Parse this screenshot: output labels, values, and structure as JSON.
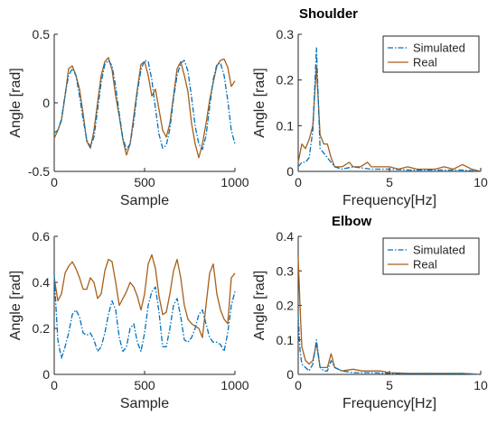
{
  "figure": {
    "titles": {
      "shoulder": "Shoulder",
      "elbow": "Elbow"
    },
    "colors": {
      "simulated": "#0072BD",
      "real": "#A65F1A"
    }
  },
  "chart_data": [
    {
      "type": "line",
      "panel": "shoulder-time",
      "title": "",
      "xlabel": "Sample",
      "ylabel": "Angle [rad]",
      "xlim": [
        0,
        1000
      ],
      "ylim": [
        -0.5,
        0.5
      ],
      "xticks": [
        0,
        500,
        1000
      ],
      "yticks": [
        -0.5,
        0,
        0.5
      ],
      "grid": false,
      "series": [
        {
          "name": "Simulated",
          "style": "dash-dot",
          "x": [
            0,
            20,
            40,
            60,
            80,
            100,
            120,
            140,
            160,
            180,
            200,
            220,
            240,
            260,
            280,
            300,
            320,
            340,
            360,
            380,
            400,
            420,
            440,
            460,
            480,
            500,
            520,
            540,
            560,
            580,
            600,
            620,
            640,
            660,
            680,
            700,
            720,
            740,
            760,
            780,
            800,
            820,
            840,
            860,
            880,
            900,
            920,
            940,
            960,
            980,
            1000
          ],
          "values": [
            -0.22,
            -0.2,
            -0.12,
            0.06,
            0.2,
            0.25,
            0.2,
            0.05,
            -0.12,
            -0.27,
            -0.32,
            -0.25,
            -0.05,
            0.15,
            0.28,
            0.31,
            0.27,
            0.12,
            -0.08,
            -0.26,
            -0.34,
            -0.3,
            -0.14,
            0.08,
            0.24,
            0.31,
            0.3,
            0.17,
            -0.04,
            -0.23,
            -0.33,
            -0.31,
            -0.19,
            0.03,
            0.2,
            0.29,
            0.31,
            0.23,
            0.04,
            -0.17,
            -0.3,
            -0.34,
            -0.24,
            -0.03,
            0.17,
            0.28,
            0.29,
            0.2,
            0.02,
            -0.2,
            -0.3
          ]
        },
        {
          "name": "Real",
          "style": "solid",
          "x": [
            0,
            20,
            40,
            60,
            80,
            100,
            120,
            140,
            160,
            180,
            200,
            220,
            240,
            260,
            280,
            300,
            320,
            340,
            360,
            380,
            400,
            420,
            440,
            460,
            480,
            500,
            520,
            540,
            560,
            580,
            600,
            620,
            640,
            660,
            680,
            700,
            720,
            740,
            760,
            780,
            800,
            820,
            840,
            860,
            880,
            900,
            920,
            940,
            960,
            980,
            1000
          ],
          "values": [
            -0.26,
            -0.2,
            -0.13,
            0.05,
            0.25,
            0.27,
            0.2,
            0.1,
            -0.08,
            -0.28,
            -0.33,
            -0.2,
            0.0,
            0.2,
            0.3,
            0.33,
            0.24,
            0.05,
            -0.1,
            -0.27,
            -0.38,
            -0.3,
            -0.1,
            0.1,
            0.28,
            0.3,
            0.2,
            0.05,
            0.1,
            -0.05,
            -0.2,
            -0.25,
            -0.15,
            0.05,
            0.25,
            0.3,
            0.2,
            0.08,
            -0.15,
            -0.3,
            -0.4,
            -0.3,
            -0.15,
            0.02,
            0.15,
            0.27,
            0.31,
            0.32,
            0.26,
            0.12,
            0.16
          ]
        }
      ]
    },
    {
      "type": "line",
      "panel": "shoulder-frequency",
      "title": "",
      "xlabel": "Frequency[Hz]",
      "ylabel": "Angle [rad]",
      "xlim": [
        0,
        10
      ],
      "ylim": [
        0,
        0.3
      ],
      "xticks": [
        0,
        5,
        10
      ],
      "yticks": [
        0,
        0.1,
        0.2,
        0.3
      ],
      "grid": false,
      "legend": "top-right",
      "series": [
        {
          "name": "Simulated",
          "style": "dash-dot",
          "x": [
            0,
            0.2,
            0.4,
            0.6,
            0.8,
            1.0,
            1.2,
            1.4,
            1.6,
            1.8,
            2.0,
            2.4,
            3.0,
            4.0,
            5.0,
            6.0,
            7.0,
            8.0,
            9.0,
            10.0
          ],
          "values": [
            0.01,
            0.02,
            0.02,
            0.03,
            0.09,
            0.27,
            0.05,
            0.04,
            0.03,
            0.02,
            0.01,
            0.005,
            0.01,
            0.005,
            0.005,
            0.003,
            0.003,
            0.003,
            0.003,
            0.0
          ]
        },
        {
          "name": "Real",
          "style": "solid",
          "x": [
            0,
            0.2,
            0.4,
            0.6,
            0.8,
            1.0,
            1.2,
            1.4,
            1.6,
            1.8,
            2.0,
            2.4,
            2.8,
            3.0,
            3.4,
            3.8,
            4.0,
            4.5,
            5.0,
            5.5,
            6.0,
            6.5,
            7.0,
            7.5,
            8.0,
            8.5,
            9.0,
            9.5,
            10.0
          ],
          "values": [
            0.02,
            0.06,
            0.05,
            0.07,
            0.1,
            0.23,
            0.08,
            0.06,
            0.06,
            0.03,
            0.01,
            0.01,
            0.02,
            0.01,
            0.01,
            0.02,
            0.01,
            0.01,
            0.01,
            0.005,
            0.01,
            0.005,
            0.005,
            0.005,
            0.01,
            0.005,
            0.015,
            0.005,
            0.0
          ]
        }
      ]
    },
    {
      "type": "line",
      "panel": "elbow-time",
      "title": "",
      "xlabel": "Sample",
      "ylabel": "Angle [rad]",
      "xlim": [
        0,
        1000
      ],
      "ylim": [
        0,
        0.6
      ],
      "xticks": [
        0,
        500,
        1000
      ],
      "yticks": [
        0,
        0.2,
        0.4,
        0.6
      ],
      "grid": false,
      "series": [
        {
          "name": "Simulated",
          "style": "dash-dot",
          "x": [
            0,
            20,
            40,
            60,
            80,
            100,
            120,
            140,
            160,
            180,
            200,
            220,
            240,
            260,
            280,
            300,
            320,
            340,
            360,
            380,
            400,
            420,
            440,
            460,
            480,
            500,
            520,
            540,
            560,
            580,
            600,
            620,
            640,
            660,
            680,
            700,
            720,
            740,
            760,
            780,
            800,
            820,
            840,
            860,
            880,
            900,
            920,
            940,
            960,
            980,
            1000
          ],
          "values": [
            0.43,
            0.15,
            0.07,
            0.12,
            0.18,
            0.26,
            0.28,
            0.25,
            0.18,
            0.17,
            0.18,
            0.15,
            0.1,
            0.12,
            0.18,
            0.26,
            0.32,
            0.28,
            0.16,
            0.1,
            0.12,
            0.2,
            0.22,
            0.14,
            0.1,
            0.18,
            0.3,
            0.36,
            0.38,
            0.27,
            0.12,
            0.12,
            0.2,
            0.3,
            0.33,
            0.25,
            0.15,
            0.14,
            0.16,
            0.2,
            0.26,
            0.28,
            0.22,
            0.16,
            0.14,
            0.14,
            0.13,
            0.1,
            0.18,
            0.3,
            0.36
          ]
        },
        {
          "name": "Real",
          "style": "solid",
          "x": [
            0,
            20,
            40,
            60,
            80,
            100,
            120,
            140,
            160,
            180,
            200,
            220,
            240,
            260,
            280,
            300,
            320,
            340,
            360,
            380,
            400,
            420,
            440,
            460,
            480,
            500,
            520,
            540,
            560,
            580,
            600,
            620,
            640,
            660,
            680,
            700,
            720,
            740,
            760,
            780,
            800,
            820,
            840,
            860,
            880,
            900,
            920,
            940,
            960,
            980,
            1000
          ],
          "values": [
            0.42,
            0.32,
            0.35,
            0.44,
            0.47,
            0.49,
            0.46,
            0.42,
            0.37,
            0.37,
            0.42,
            0.4,
            0.33,
            0.35,
            0.45,
            0.5,
            0.49,
            0.4,
            0.3,
            0.33,
            0.36,
            0.4,
            0.38,
            0.34,
            0.28,
            0.35,
            0.48,
            0.52,
            0.46,
            0.34,
            0.26,
            0.27,
            0.35,
            0.45,
            0.5,
            0.42,
            0.3,
            0.24,
            0.22,
            0.21,
            0.2,
            0.16,
            0.3,
            0.44,
            0.48,
            0.35,
            0.28,
            0.24,
            0.22,
            0.42,
            0.44
          ]
        }
      ]
    },
    {
      "type": "line",
      "panel": "elbow-frequency",
      "title": "",
      "xlabel": "Frequency[Hz]",
      "ylabel": "Angle [rad]",
      "xlim": [
        0,
        10
      ],
      "ylim": [
        0,
        0.4
      ],
      "xticks": [
        0,
        5,
        10
      ],
      "yticks": [
        0,
        0.1,
        0.2,
        0.3,
        0.4
      ],
      "grid": false,
      "legend": "top-right",
      "series": [
        {
          "name": "Simulated",
          "style": "dash-dot",
          "x": [
            0,
            0.1,
            0.2,
            0.4,
            0.6,
            0.8,
            1.0,
            1.2,
            1.4,
            1.6,
            1.8,
            2.0,
            2.4,
            3.0,
            4.0,
            5.0,
            6.0,
            7.0,
            8.0,
            9.0,
            10.0
          ],
          "values": [
            0.17,
            0.07,
            0.03,
            0.02,
            0.01,
            0.03,
            0.1,
            0.02,
            0.01,
            0.01,
            0.04,
            0.02,
            0.01,
            0.005,
            0.005,
            0.003,
            0.002,
            0.002,
            0.002,
            0.002,
            0.0
          ]
        },
        {
          "name": "Real",
          "style": "solid",
          "x": [
            0,
            0.1,
            0.2,
            0.4,
            0.6,
            0.8,
            1.0,
            1.2,
            1.4,
            1.6,
            1.8,
            2.0,
            2.4,
            3.0,
            3.5,
            4.0,
            4.5,
            5.0,
            6.0,
            7.0,
            8.0,
            9.0,
            10.0
          ],
          "values": [
            0.34,
            0.2,
            0.08,
            0.04,
            0.03,
            0.04,
            0.09,
            0.02,
            0.02,
            0.02,
            0.06,
            0.02,
            0.01,
            0.015,
            0.01,
            0.01,
            0.01,
            0.005,
            0.003,
            0.003,
            0.003,
            0.003,
            0.0
          ]
        }
      ]
    }
  ]
}
